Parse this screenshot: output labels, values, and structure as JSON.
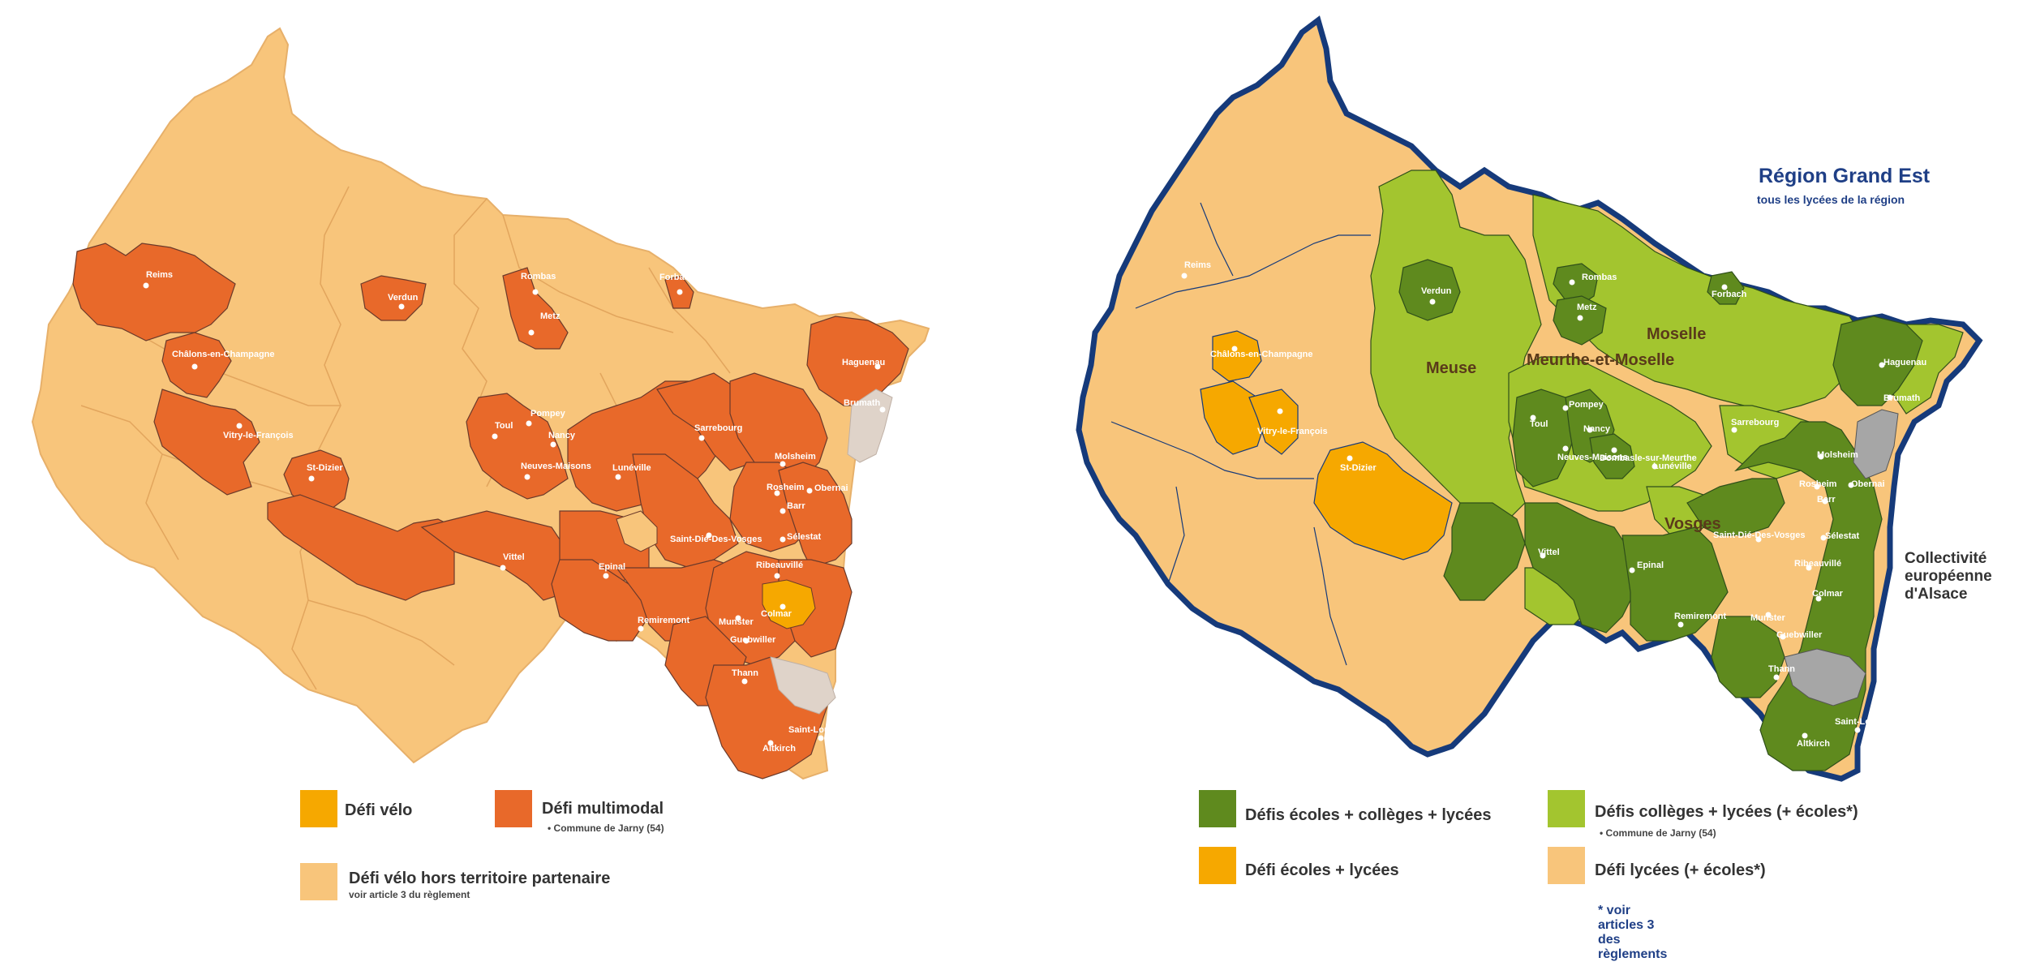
{
  "colors": {
    "defi_velo": "#f6a800",
    "defi_multimodal": "#e8692a",
    "defi_velo_hors": "#f8c57b",
    "defi_ecoles_colleges_lycees": "#5f8a1e",
    "defi_colleges_lycees": "#a3c52f",
    "defi_ecoles_lycees": "#f6a800",
    "defi_lycees": "#f8c57b",
    "outline": "#163a7a",
    "grey": "#a6a6a6"
  },
  "left_map": {
    "towns": [
      "Reims",
      "Verdun",
      "Rombas",
      "Metz",
      "Forbach",
      "Châlons-en-Champagne",
      "Vitry-le-François",
      "Toul",
      "Pompey",
      "Nancy",
      "Neuves-Maisons",
      "St-Dizier",
      "Lunéville",
      "Sarrebourg",
      "Haguenau",
      "Brumath",
      "Molsheim",
      "Rosheim",
      "Obernai",
      "Barr",
      "Sélestat",
      "Saint-Dié-Des-Vosges",
      "Vittel",
      "Epinal",
      "Ribeauvillé",
      "Colmar",
      "Munster",
      "Remiremont",
      "Guebwiller",
      "Thann",
      "Saint-Louis",
      "Altkirch"
    ],
    "legend": {
      "velo": "Défi vélo",
      "multimodal": "Défi multimodal",
      "multimodal_note": "Commune de Jarny (54)",
      "hors": "Défi vélo hors territoire partenaire",
      "hors_note": "voir article 3 du règlement"
    }
  },
  "right_map": {
    "title": "Région Grand Est",
    "subtitle": "tous les lycées de la région",
    "departments": [
      "Meuse",
      "Meurthe-et-Moselle",
      "Moselle",
      "Vosges"
    ],
    "collectivite": [
      "Collectivité",
      "européenne",
      "d'Alsace"
    ],
    "towns": [
      "Reims",
      "Verdun",
      "Rombas",
      "Metz",
      "Forbach",
      "Châlons-en-Champagne",
      "Vitry-le-François",
      "St-Dizier",
      "Toul",
      "Pompey",
      "Nancy",
      "Neuves-Maisons",
      "Dombasle-sur-Meurthe",
      "Lunéville",
      "Sarrebourg",
      "Haguenau",
      "Brumath",
      "Molsheim",
      "Rosheim",
      "Obernai",
      "Barr",
      "Sélestat",
      "Saint-Dié-Des-Vosges",
      "Vittel",
      "Epinal",
      "Ribeauvillé",
      "Colmar",
      "Munster",
      "Remiremont",
      "Guebwiller",
      "Thann",
      "Saint-Louis",
      "Altkirch"
    ],
    "legend": {
      "ecl": "Défis écoles + collèges + lycées",
      "cl": "Défis collèges + lycées (+ écoles*)",
      "cl_note": "Commune de Jarny (54)",
      "el": "Défi écoles + lycées",
      "l": "Défi lycées (+ écoles*)",
      "footnote": "* voir articles 3 des règlements"
    }
  }
}
